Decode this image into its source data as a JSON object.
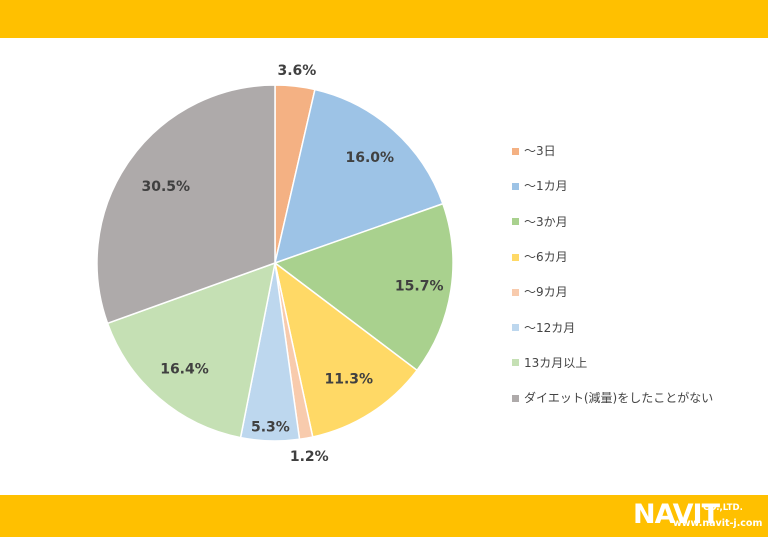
{
  "colors": {
    "band": "#ffc000"
  },
  "chart_data": {
    "type": "pie",
    "unit": "%",
    "start_angle_deg": 0,
    "direction": "clockwise",
    "categories": [
      "～3日",
      "～1カ月",
      "～3か月",
      "～6カ月",
      "～9カ月",
      "～12カ月",
      "13カ月以上",
      "ダイエット(減量)をしたことがない"
    ],
    "values": [
      3.6,
      16.0,
      15.7,
      11.3,
      1.2,
      5.3,
      16.4,
      30.5
    ],
    "data_labels": [
      "3.6%",
      "16.0%",
      "15.7%",
      "11.3%",
      "1.2%",
      "5.3%",
      "16.4%",
      "30.5%"
    ],
    "colors": [
      "#f4b183",
      "#9dc3e6",
      "#a9d18e",
      "#ffd966",
      "#f8cbad",
      "#bdd7ee",
      "#c5e0b4",
      "#aeaaaa"
    ],
    "legend_position": "right"
  },
  "logo": {
    "brand": "NAVIT",
    "company": "CO.,LTD.",
    "url": "www.navit-j.com"
  }
}
